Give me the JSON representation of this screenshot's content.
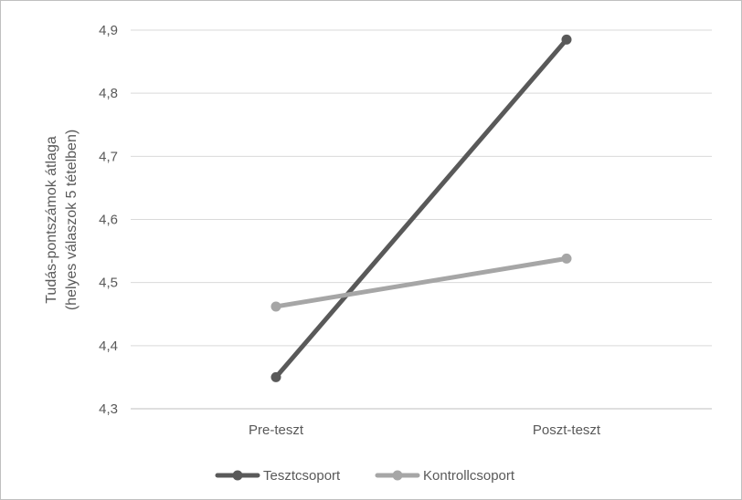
{
  "chart_data": {
    "type": "line",
    "categories": [
      "Pre-teszt",
      "Poszt-teszt"
    ],
    "series": [
      {
        "name": "Tesztcsoport",
        "values": [
          4.35,
          4.885
        ],
        "color": "#595959"
      },
      {
        "name": "Kontrollcsoport",
        "values": [
          4.462,
          4.538
        ],
        "color": "#a6a6a6"
      }
    ],
    "yticks": [
      "4,3",
      "4,4",
      "4,5",
      "4,6",
      "4,7",
      "4,8",
      "4,9"
    ],
    "ylim": [
      4.3,
      4.9
    ],
    "ylabel_line1": "Tudás-pontszámok átlaga",
    "ylabel_line2": "(helyes válaszok 5 tételben)",
    "xlabel": "",
    "grid": true,
    "legend_position": "bottom"
  }
}
